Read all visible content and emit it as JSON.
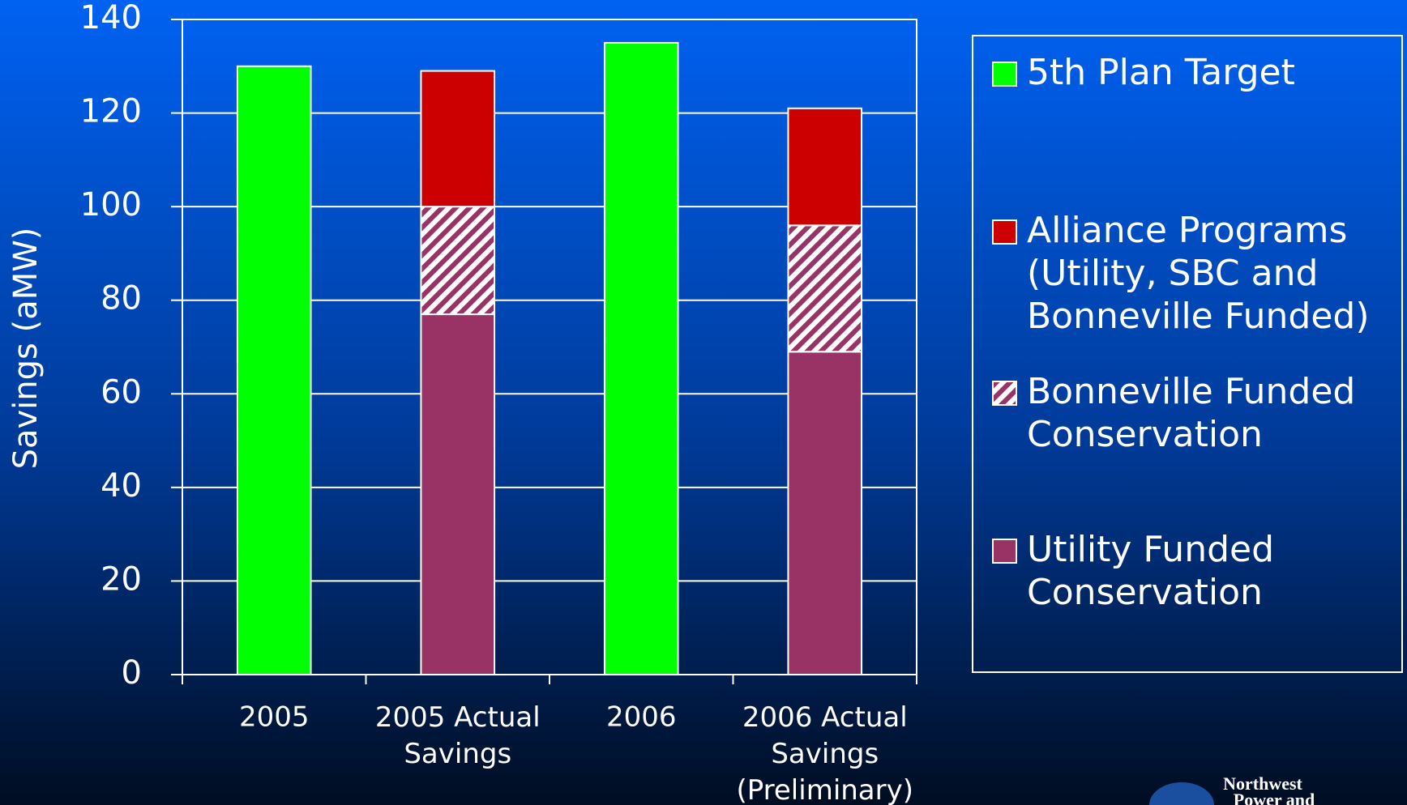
{
  "chart_data": {
    "type": "stacked_bar",
    "y_axis_label": "Savings (aMW)",
    "categories": [
      "2005",
      "2005 Actual\nSavings",
      "2006",
      "2006 Actual\nSavings\n(Preliminary)"
    ],
    "series": [
      {
        "name": "5th Plan Target",
        "color": "#00ff00",
        "values": [
          130,
          null,
          135,
          null
        ]
      },
      {
        "name": "Alliance Programs\n(Utility, SBC and\nBonneville Funded)",
        "color": "#cc0000",
        "values": [
          null,
          29,
          null,
          25
        ]
      },
      {
        "name": "Bonneville Funded\nConservation",
        "color": "#993366",
        "pattern": "hatch",
        "values": [
          null,
          23,
          null,
          27
        ]
      },
      {
        "name": "Utility Funded\nConservation",
        "color": "#993366",
        "values": [
          null,
          77,
          null,
          69
        ]
      }
    ],
    "ylim": [
      0,
      140
    ],
    "yticks": [
      0,
      20,
      40,
      60,
      80,
      100,
      120,
      140
    ],
    "grid": true,
    "legend": "right",
    "logo": {
      "line1": "Northwest",
      "line2": "Power and"
    }
  }
}
